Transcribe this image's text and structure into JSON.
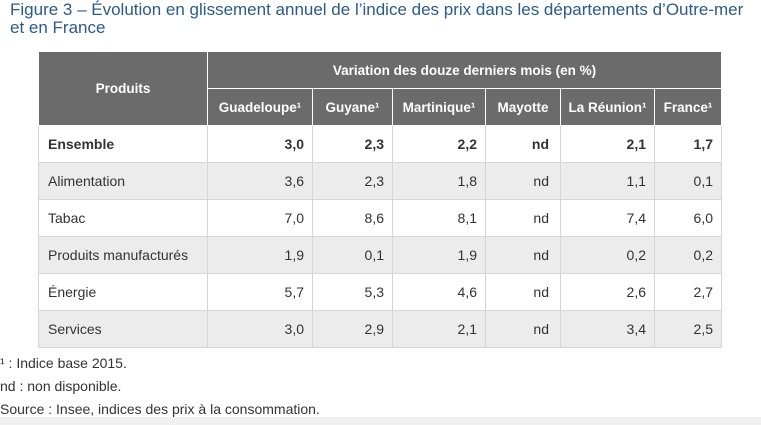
{
  "title": "Figure 3 – Évolution en glissement annuel de l’indice des prix dans les départements d’Outre-mer et en France",
  "table": {
    "row_header": "Produits",
    "group_header": "Variation des douze derniers mois (en %)",
    "columns": [
      "Guadeloupe¹",
      "Guyane¹",
      "Martinique¹",
      "Mayotte",
      "La Réunion¹",
      "France¹"
    ],
    "rows": [
      {
        "label": "Ensemble",
        "values": [
          "3,0",
          "2,3",
          "2,2",
          "nd",
          "2,1",
          "1,7"
        ]
      },
      {
        "label": "Alimentation",
        "values": [
          "3,6",
          "2,3",
          "1,8",
          "nd",
          "1,1",
          "0,1"
        ]
      },
      {
        "label": "Tabac",
        "values": [
          "7,0",
          "8,6",
          "8,1",
          "nd",
          "7,4",
          "6,0"
        ]
      },
      {
        "label": "Produits manufacturés",
        "values": [
          "1,9",
          "0,1",
          "1,9",
          "nd",
          "0,2",
          "0,2"
        ]
      },
      {
        "label": "Énergie",
        "values": [
          "5,7",
          "5,3",
          "4,6",
          "nd",
          "2,6",
          "2,7"
        ]
      },
      {
        "label": "Services",
        "values": [
          "3,0",
          "2,9",
          "2,1",
          "nd",
          "3,4",
          "2,5"
        ]
      }
    ]
  },
  "notes": [
    "¹ : Indice base 2015.",
    "nd : non disponible.",
    "Source : Insee, indices des prix à la consommation."
  ],
  "colors": {
    "title": "#2b5a8c",
    "header_bg": "#6b6b6b",
    "row_alt_bg": "#ececec"
  }
}
